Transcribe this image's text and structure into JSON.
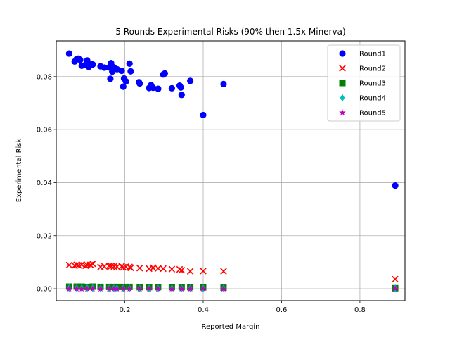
{
  "chart_data": {
    "type": "scatter",
    "title": "5 Rounds Experimental Risks (90% then 1.5x Minerva)",
    "xlabel": "Reported Margin",
    "ylabel": "Experimental Risk",
    "xlim": [
      0.025,
      0.915
    ],
    "ylim": [
      -0.0045,
      0.0935
    ],
    "xticks": [
      0.2,
      0.4,
      0.6,
      0.8
    ],
    "xtick_labels": [
      "0.2",
      "0.4",
      "0.6",
      "0.8"
    ],
    "yticks": [
      0.0,
      0.02,
      0.04,
      0.06,
      0.08
    ],
    "ytick_labels": [
      "0.00",
      "0.02",
      "0.04",
      "0.06",
      "0.08"
    ],
    "grid": true,
    "legend_position": "top-right",
    "series": [
      {
        "name": "Round1",
        "marker": "circle",
        "color": "#0000ff",
        "points": [
          [
            0.058,
            0.0887
          ],
          [
            0.072,
            0.0857
          ],
          [
            0.077,
            0.0866
          ],
          [
            0.082,
            0.0868
          ],
          [
            0.086,
            0.0863
          ],
          [
            0.09,
            0.0841
          ],
          [
            0.1,
            0.0845
          ],
          [
            0.104,
            0.0861
          ],
          [
            0.108,
            0.0837
          ],
          [
            0.112,
            0.0847
          ],
          [
            0.118,
            0.0846
          ],
          [
            0.138,
            0.0839
          ],
          [
            0.148,
            0.0834
          ],
          [
            0.16,
            0.0835
          ],
          [
            0.163,
            0.0792
          ],
          [
            0.165,
            0.0851
          ],
          [
            0.168,
            0.0819
          ],
          [
            0.172,
            0.0835
          ],
          [
            0.18,
            0.0828
          ],
          [
            0.192,
            0.0822
          ],
          [
            0.196,
            0.0762
          ],
          [
            0.198,
            0.0793
          ],
          [
            0.203,
            0.0782
          ],
          [
            0.212,
            0.0849
          ],
          [
            0.215,
            0.082
          ],
          [
            0.236,
            0.0779
          ],
          [
            0.238,
            0.0774
          ],
          [
            0.262,
            0.0757
          ],
          [
            0.267,
            0.0768
          ],
          [
            0.272,
            0.0758
          ],
          [
            0.285,
            0.0754
          ],
          [
            0.298,
            0.0808
          ],
          [
            0.302,
            0.0812
          ],
          [
            0.32,
            0.0756
          ],
          [
            0.34,
            0.0766
          ],
          [
            0.343,
            0.0759
          ],
          [
            0.345,
            0.0731
          ],
          [
            0.367,
            0.0784
          ],
          [
            0.4,
            0.0655
          ],
          [
            0.452,
            0.0772
          ],
          [
            0.89,
            0.0389
          ]
        ]
      },
      {
        "name": "Round2",
        "marker": "x",
        "color": "#ff0000",
        "points": [
          [
            0.058,
            0.0089
          ],
          [
            0.072,
            0.0087
          ],
          [
            0.077,
            0.009
          ],
          [
            0.082,
            0.0088
          ],
          [
            0.09,
            0.0091
          ],
          [
            0.1,
            0.0087
          ],
          [
            0.104,
            0.0089
          ],
          [
            0.112,
            0.009
          ],
          [
            0.118,
            0.0094
          ],
          [
            0.138,
            0.0082
          ],
          [
            0.148,
            0.0084
          ],
          [
            0.16,
            0.0086
          ],
          [
            0.165,
            0.0085
          ],
          [
            0.172,
            0.0084
          ],
          [
            0.18,
            0.0083
          ],
          [
            0.192,
            0.0084
          ],
          [
            0.196,
            0.0081
          ],
          [
            0.203,
            0.0083
          ],
          [
            0.212,
            0.0082
          ],
          [
            0.215,
            0.0079
          ],
          [
            0.238,
            0.0078
          ],
          [
            0.262,
            0.0076
          ],
          [
            0.272,
            0.0079
          ],
          [
            0.285,
            0.0077
          ],
          [
            0.298,
            0.0076
          ],
          [
            0.32,
            0.0074
          ],
          [
            0.34,
            0.0073
          ],
          [
            0.345,
            0.007
          ],
          [
            0.367,
            0.0066
          ],
          [
            0.4,
            0.0067
          ],
          [
            0.452,
            0.0066
          ],
          [
            0.89,
            0.0036
          ]
        ]
      },
      {
        "name": "Round3",
        "marker": "square",
        "color": "#008000",
        "points": [
          [
            0.058,
            0.0008
          ],
          [
            0.077,
            0.0008
          ],
          [
            0.09,
            0.0008
          ],
          [
            0.104,
            0.0007
          ],
          [
            0.118,
            0.0008
          ],
          [
            0.138,
            0.0007
          ],
          [
            0.16,
            0.0007
          ],
          [
            0.172,
            0.0007
          ],
          [
            0.18,
            0.0007
          ],
          [
            0.196,
            0.0007
          ],
          [
            0.212,
            0.0007
          ],
          [
            0.238,
            0.0006
          ],
          [
            0.262,
            0.0006
          ],
          [
            0.285,
            0.0006
          ],
          [
            0.32,
            0.0006
          ],
          [
            0.345,
            0.0006
          ],
          [
            0.367,
            0.0006
          ],
          [
            0.4,
            0.0005
          ],
          [
            0.452,
            0.0004
          ],
          [
            0.89,
            0.0002
          ]
        ]
      },
      {
        "name": "Round4",
        "marker": "diamond",
        "color": "#00bfbf",
        "points": [
          [
            0.058,
            0.0002
          ],
          [
            0.077,
            0.0002
          ],
          [
            0.09,
            0.0002
          ],
          [
            0.104,
            0.0002
          ],
          [
            0.118,
            0.0002
          ],
          [
            0.138,
            0.0001
          ],
          [
            0.16,
            0.0001
          ],
          [
            0.172,
            0.0001
          ],
          [
            0.18,
            0.0001
          ],
          [
            0.196,
            0.0001
          ],
          [
            0.212,
            0.0001
          ],
          [
            0.238,
            0.0001
          ],
          [
            0.262,
            0.0001
          ],
          [
            0.285,
            0.0001
          ],
          [
            0.32,
            0.0001
          ],
          [
            0.345,
            0.0001
          ],
          [
            0.367,
            0.0001
          ],
          [
            0.4,
            0.0001
          ],
          [
            0.452,
            0.0001
          ],
          [
            0.89,
            0.0001
          ]
        ]
      },
      {
        "name": "Round5",
        "marker": "star",
        "color": "#bf00bf",
        "points": [
          [
            0.058,
            0.0
          ],
          [
            0.077,
            0.0
          ],
          [
            0.09,
            0.0
          ],
          [
            0.104,
            0.0
          ],
          [
            0.118,
            0.0
          ],
          [
            0.138,
            0.0
          ],
          [
            0.16,
            0.0
          ],
          [
            0.172,
            0.0
          ],
          [
            0.18,
            0.0
          ],
          [
            0.196,
            0.0
          ],
          [
            0.212,
            0.0
          ],
          [
            0.238,
            0.0
          ],
          [
            0.262,
            0.0
          ],
          [
            0.285,
            0.0
          ],
          [
            0.32,
            0.0
          ],
          [
            0.345,
            0.0
          ],
          [
            0.367,
            0.0
          ],
          [
            0.4,
            0.0
          ],
          [
            0.452,
            0.0
          ],
          [
            0.89,
            0.0
          ]
        ]
      }
    ]
  }
}
